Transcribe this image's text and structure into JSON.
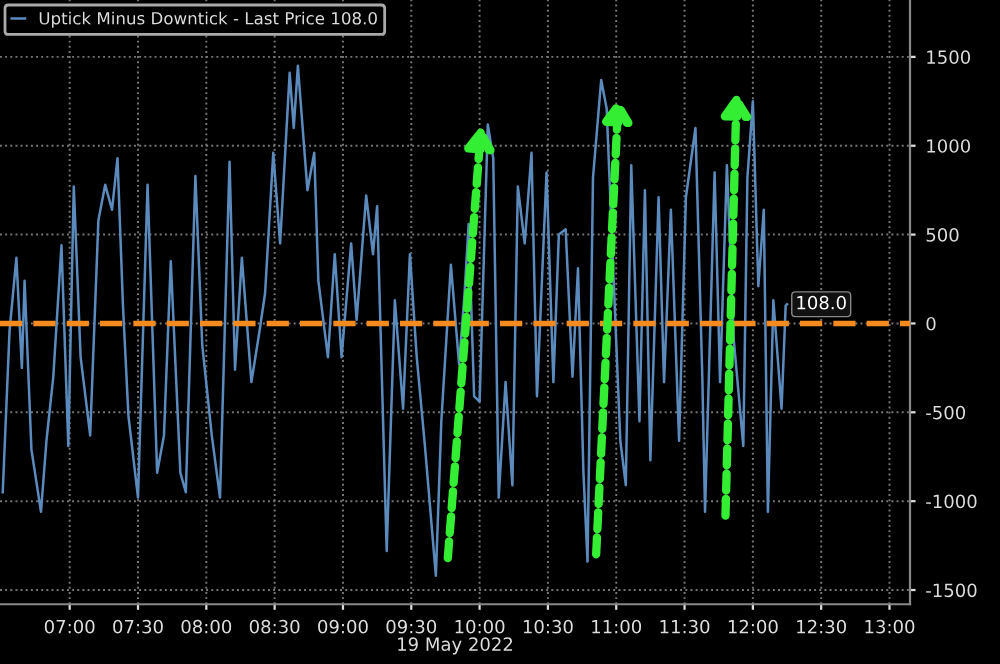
{
  "chart_data": {
    "type": "line",
    "xlabel": "19 May 2022",
    "xlim": [
      6.49,
      13.15
    ],
    "ylim": [
      -1580,
      1820
    ],
    "xticks": [
      {
        "value": 7,
        "label": "07:00"
      },
      {
        "value": 7.5,
        "label": "07:30"
      },
      {
        "value": 8,
        "label": "08:00"
      },
      {
        "value": 8.5,
        "label": "08:30"
      },
      {
        "value": 9,
        "label": "09:00"
      },
      {
        "value": 9.5,
        "label": "09:30"
      },
      {
        "value": 10,
        "label": "10:00"
      },
      {
        "value": 10.5,
        "label": "10:30"
      },
      {
        "value": 11,
        "label": "11:00"
      },
      {
        "value": 11.5,
        "label": "11:30"
      },
      {
        "value": 12,
        "label": "12:00"
      },
      {
        "value": 12.5,
        "label": "12:30"
      },
      {
        "value": 13,
        "label": "13:00"
      }
    ],
    "yticks": [
      -1500,
      -1000,
      -500,
      0,
      500,
      1000,
      1500
    ],
    "grid": true,
    "legend": "top left",
    "ref_lines": [
      {
        "axis": "y",
        "value": 0,
        "color": "#f58a1f",
        "line_style": "dashed"
      }
    ],
    "series": [
      {
        "name": "Uptick Minus Downtick - Last Price 108.0",
        "color": "#5b8bbd",
        "x": [
          6.51,
          6.56,
          6.61,
          6.65,
          6.67,
          6.72,
          6.79,
          6.83,
          6.88,
          6.94,
          6.99,
          7.03,
          7.08,
          7.15,
          7.21,
          7.26,
          7.31,
          7.35,
          7.39,
          7.43,
          7.5,
          7.57,
          7.64,
          7.69,
          7.74,
          7.81,
          7.85,
          7.92,
          7.97,
          8.04,
          8.1,
          8.17,
          8.21,
          8.26,
          8.33,
          8.39,
          8.43,
          8.49,
          8.54,
          8.61,
          8.64,
          8.67,
          8.74,
          8.79,
          8.82,
          8.89,
          8.94,
          8.99,
          9.06,
          9.1,
          9.17,
          9.22,
          9.25,
          9.32,
          9.38,
          9.44,
          9.49,
          9.54,
          9.6,
          9.68,
          9.72,
          9.79,
          9.85,
          9.89,
          9.92,
          9.96,
          10.0,
          10.06,
          10.1,
          10.14,
          10.19,
          10.24,
          10.28,
          10.33,
          10.38,
          10.42,
          10.49,
          10.54,
          10.58,
          10.63,
          10.68,
          10.72,
          10.76,
          10.79,
          10.83,
          10.89,
          10.93,
          10.97,
          11.03,
          11.07,
          11.11,
          11.17,
          11.21,
          11.25,
          11.31,
          11.35,
          11.4,
          11.46,
          11.51,
          11.58,
          11.63,
          11.65,
          11.72,
          11.76,
          11.81,
          11.86,
          11.93,
          11.96,
          12.0,
          12.04,
          12.08,
          12.11,
          12.15,
          12.21,
          12.24,
          12.25
        ],
        "values": [
          -950,
          -40,
          370,
          -250,
          240,
          -710,
          -1060,
          -660,
          -300,
          440,
          -690,
          770,
          -190,
          -630,
          580,
          780,
          640,
          930,
          100,
          -520,
          -980,
          780,
          -840,
          -630,
          350,
          -840,
          -950,
          830,
          -120,
          -630,
          -980,
          910,
          -260,
          370,
          -330,
          -40,
          170,
          960,
          450,
          1410,
          1100,
          1450,
          750,
          960,
          240,
          -190,
          390,
          -190,
          450,
          20,
          720,
          390,
          660,
          -1280,
          130,
          -480,
          390,
          -190,
          -690,
          -1420,
          -550,
          330,
          -230,
          170,
          560,
          -410,
          -440,
          1120,
          930,
          -980,
          -330,
          -910,
          770,
          450,
          960,
          -410,
          850,
          -330,
          500,
          530,
          -300,
          310,
          -840,
          -1340,
          820,
          1370,
          1210,
          450,
          -660,
          -910,
          890,
          -550,
          750,
          -770,
          710,
          -330,
          640,
          -660,
          710,
          1100,
          -300,
          -1060,
          850,
          -330,
          890,
          -90,
          -690,
          820,
          1250,
          210,
          640,
          -1060,
          130,
          -480,
          100,
          108
        ],
        "value_labels": [
          null,
          null,
          null,
          null,
          null,
          null,
          null,
          null,
          null,
          null,
          null,
          null,
          null,
          null,
          null,
          null,
          null,
          null,
          null,
          null,
          null,
          null,
          null,
          null,
          null,
          null,
          null,
          null,
          null,
          null,
          null,
          null,
          null,
          null,
          null,
          null,
          null,
          null,
          null,
          null,
          null,
          null,
          null,
          null,
          null,
          null,
          null,
          null,
          null,
          null,
          null,
          null,
          null,
          null,
          null,
          null,
          null,
          null,
          null,
          null,
          null,
          null,
          null,
          null,
          null,
          null,
          null,
          null,
          null,
          null,
          null,
          null,
          null,
          null,
          null,
          null,
          null,
          null,
          null,
          null,
          null,
          null,
          null,
          null,
          null,
          null,
          null,
          null,
          null,
          null,
          null,
          null,
          null,
          null,
          null,
          null,
          null,
          null,
          null,
          null,
          null,
          null,
          null,
          null,
          null,
          null,
          null,
          null,
          null,
          null,
          null,
          null,
          null,
          null,
          null,
          "108.0"
        ]
      }
    ]
  }
}
